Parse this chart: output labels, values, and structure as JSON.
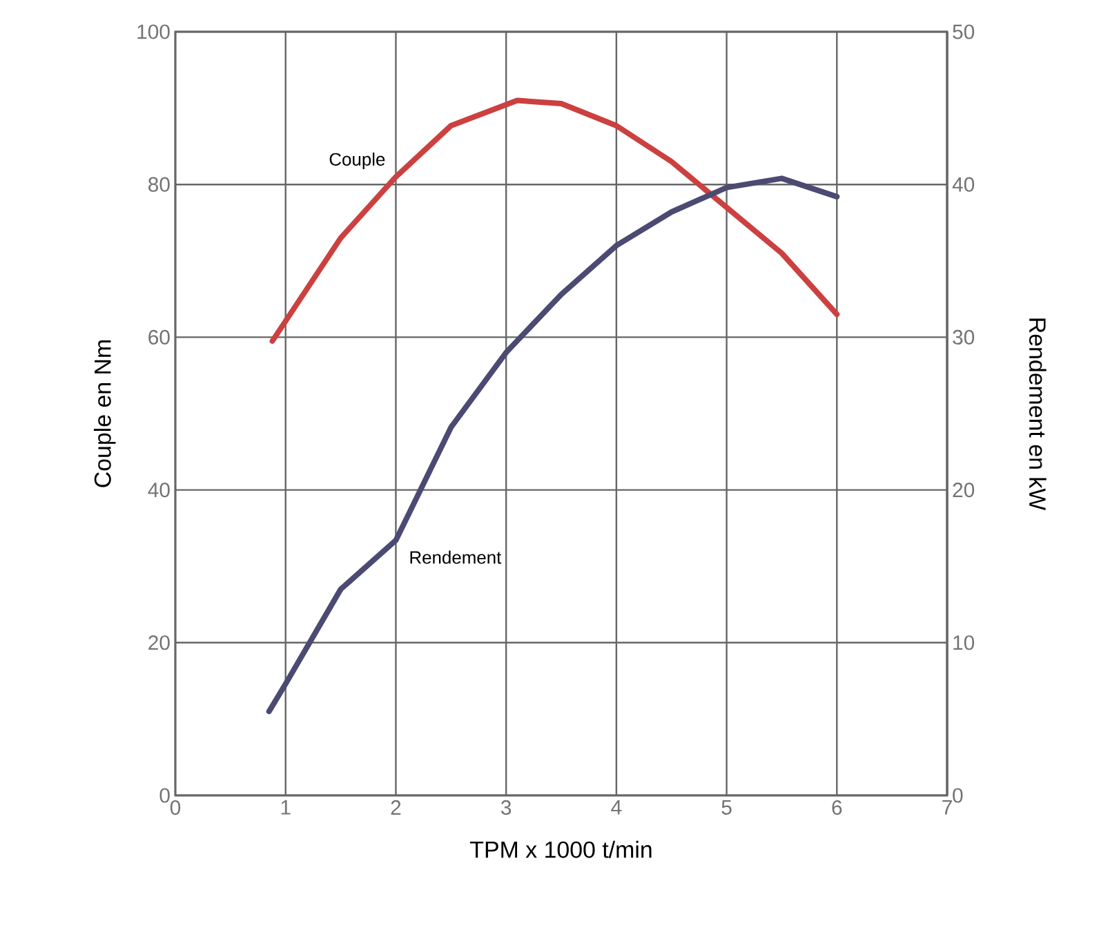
{
  "chart_data": {
    "type": "line",
    "xlabel": "TPM x 1000 t/min",
    "ylabel": "Couple en Nm",
    "y2label": "Rendement en kW",
    "xlim": [
      0,
      7
    ],
    "xticks": [
      0,
      1,
      2,
      3,
      4,
      5,
      6,
      7
    ],
    "ylim": [
      0,
      100
    ],
    "yticks": [
      0,
      20,
      40,
      60,
      80,
      100
    ],
    "y2lim": [
      0,
      50
    ],
    "y2ticks": [
      0,
      10,
      20,
      30,
      40,
      50
    ],
    "grid": true,
    "legend": false,
    "line_style": "solid",
    "marker": "none",
    "series": [
      {
        "name": "Couple",
        "color": "#cc4040",
        "x": [
          0.88,
          1.5,
          2,
          2.5,
          3.1,
          3.5,
          4,
          4.5,
          5,
          5.5,
          6
        ],
        "values": [
          59.5,
          73,
          81,
          87.7,
          91,
          90.6,
          87.7,
          83,
          77,
          71,
          63
        ]
      },
      {
        "name": "Rendement",
        "color": "#4a4a72",
        "axis": "y2",
        "x": [
          0.85,
          1,
          1.5,
          2,
          2.5,
          3,
          3.5,
          4,
          4.5,
          5,
          5.5,
          6
        ],
        "values": [
          5.5,
          7.3,
          13.5,
          16.7,
          24.1,
          29,
          32.8,
          36,
          38.2,
          39.8,
          40.4,
          39.2
        ]
      }
    ]
  }
}
